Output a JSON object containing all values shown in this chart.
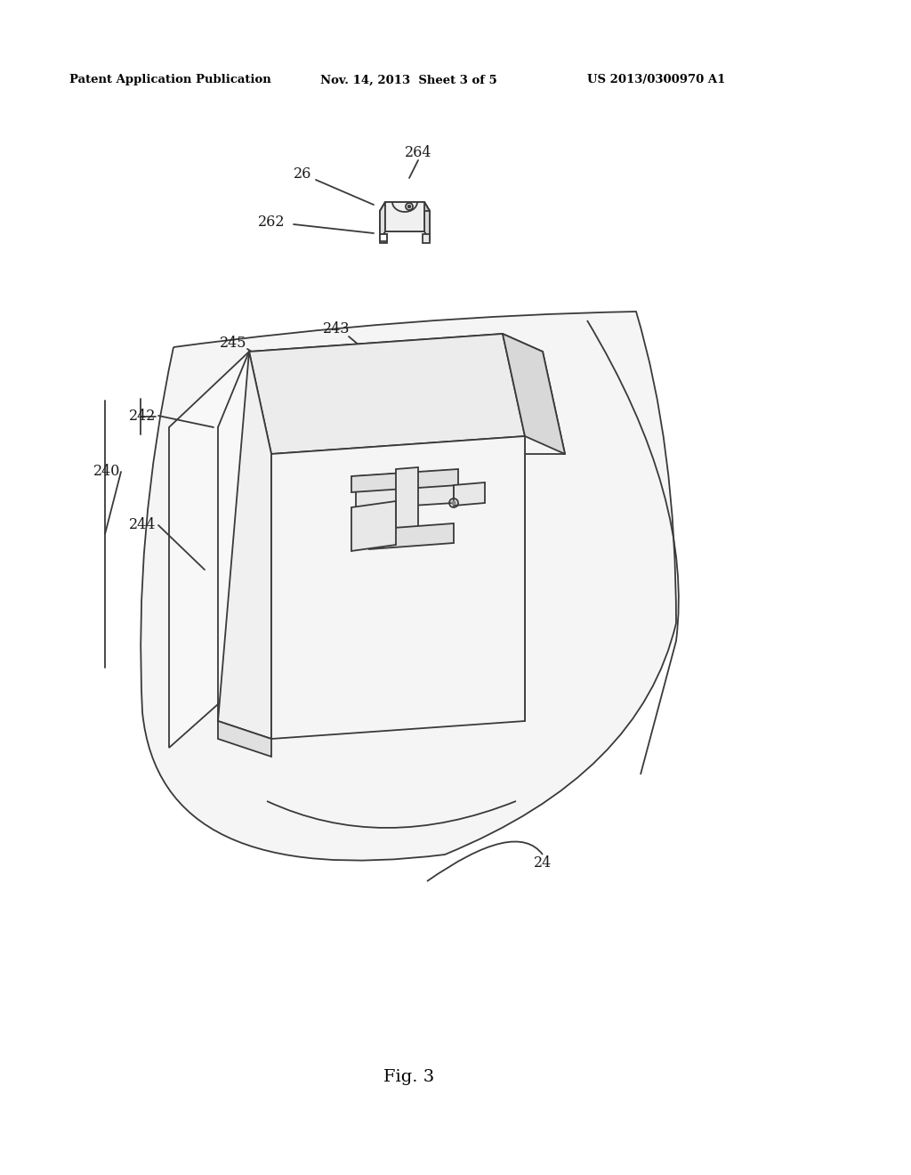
{
  "bg_color": "#ffffff",
  "line_color": "#3a3a3a",
  "header_left": "Patent Application Publication",
  "header_mid": "Nov. 14, 2013  Sheet 3 of 5",
  "header_right": "US 2013/0300970 A1",
  "fig_label": "Fig. 3",
  "lw": 1.3
}
